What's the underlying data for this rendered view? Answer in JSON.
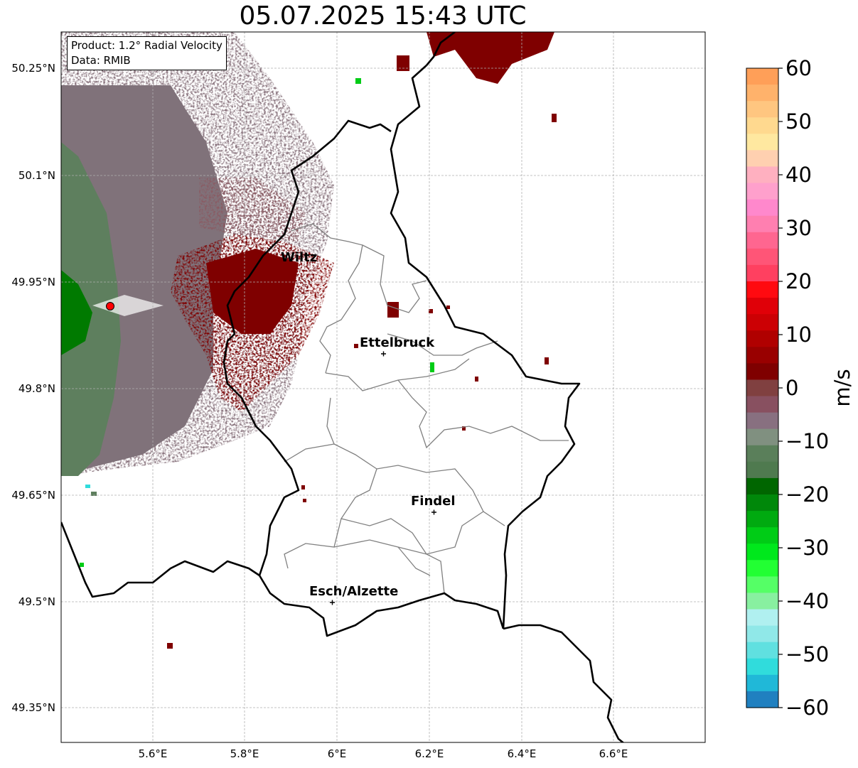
{
  "title": "05.07.2025 15:43 UTC",
  "info": {
    "product": "Product: 1.2° Radial Velocity",
    "data": "Data: RMIB"
  },
  "axes": {
    "lon_ticks": [
      "5.6°E",
      "5.8°E",
      "6°E",
      "6.2°E",
      "6.4°E",
      "6.6°E"
    ],
    "lat_ticks": [
      "50.25°N",
      "50.1°N",
      "49.95°N",
      "49.8°N",
      "49.65°N",
      "49.5°N",
      "49.35°N"
    ]
  },
  "cities": [
    {
      "name": "Wiltz",
      "lon": 5.93,
      "lat": 49.97
    },
    {
      "name": "Ettelbruck",
      "lon": 6.1,
      "lat": 49.85
    },
    {
      "name": "Findel",
      "lon": 6.21,
      "lat": 49.63
    },
    {
      "name": "Esch/Alzette",
      "lon": 5.99,
      "lat": 49.5
    }
  ],
  "radar_site": {
    "lon": 5.505,
    "lat": 49.915,
    "color": "#ff0000"
  },
  "colorbar": {
    "label": "m/s",
    "ticks": [
      "60",
      "50",
      "40",
      "30",
      "20",
      "10",
      "0",
      "−10",
      "−20",
      "−30",
      "−40",
      "−50",
      "−60"
    ],
    "range": [
      -60,
      60
    ],
    "colors_top_to_bottom": [
      "#ff9f58",
      "#ffb26b",
      "#ffc680",
      "#ffd98f",
      "#ffe8a0",
      "#ffd0b0",
      "#ffb0c0",
      "#ffa0cc",
      "#ff88cc",
      "#ff7fb0",
      "#ff6690",
      "#ff5577",
      "#ff4060",
      "#ff0a10",
      "#e00008",
      "#cc0004",
      "#b00000",
      "#990000",
      "#7f0000",
      "#804040",
      "#885060",
      "#887080",
      "#809080",
      "#5a7f5a",
      "#4f7a4f",
      "#006600",
      "#00880a",
      "#00aa10",
      "#00cc16",
      "#00e81c",
      "#22ff33",
      "#55ff66",
      "#88f0a0",
      "#b0f0f0",
      "#90e8e8",
      "#60e0e0",
      "#30dcdc",
      "#20b8d8",
      "#2080c0"
    ]
  },
  "map_colors": {
    "border": "#000000",
    "cantons": "#808080",
    "receding_dark": "#7f0000",
    "receding_light": "#8a5a62",
    "near_zero": "#80727a",
    "approaching": "#5c7f5c",
    "approaching_strong": "#007a00"
  }
}
